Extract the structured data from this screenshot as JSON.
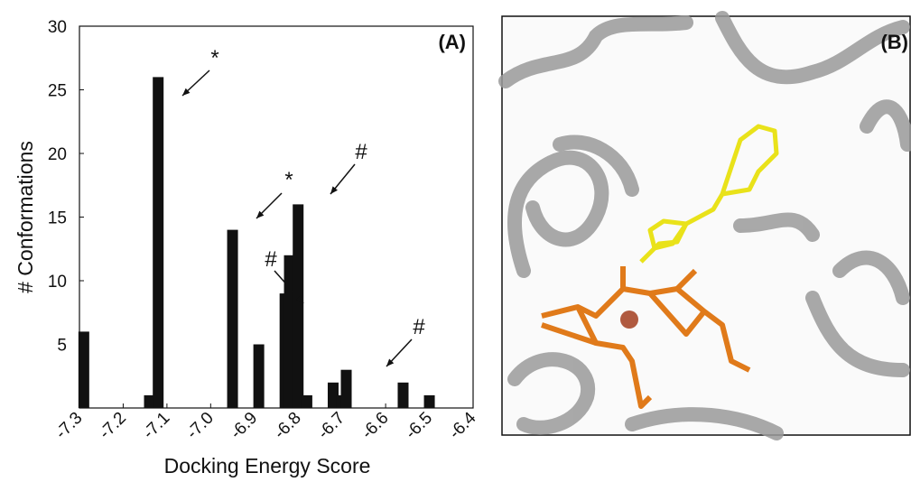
{
  "chart_data": {
    "type": "bar",
    "xlabel": "Docking Energy Score",
    "ylabel": "# Conformations",
    "panel_label": "(A)",
    "x": [
      -7.29,
      -7.14,
      -7.12,
      -6.95,
      -6.89,
      -6.83,
      -6.82,
      -6.8,
      -6.78,
      -6.72,
      -6.7,
      -6.69,
      -6.56,
      -6.5
    ],
    "values": [
      6,
      1,
      26,
      14,
      5,
      9,
      12,
      16,
      1,
      2,
      1,
      3,
      2,
      1
    ],
    "color": "#111111",
    "xlim": [
      -7.3,
      -6.4
    ],
    "xticks": [
      -7.3,
      -7.2,
      -7.1,
      {
        "value": -7,
        "label": "-7.0"
      },
      -6.9,
      -6.8,
      -6.7,
      -6.6,
      -6.5,
      -6.4
    ],
    "ylim": [
      0,
      30
    ],
    "yticks": [
      5,
      10,
      15,
      20,
      25,
      30
    ],
    "annotations": [
      "*",
      "*",
      "#",
      "#",
      "#"
    ]
  },
  "image_panel": {
    "label": "(B)"
  }
}
